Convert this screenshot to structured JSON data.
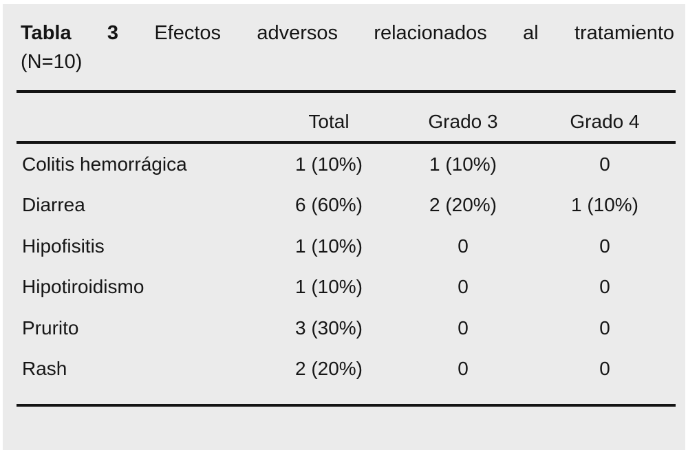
{
  "table": {
    "title_label": "Tabla 3",
    "title_text": "Efectos adversos relacionados al tratamiento",
    "title_note": "(N=10)",
    "columns": [
      "",
      "Total",
      "Grado 3",
      "Grado 4"
    ],
    "rows": [
      {
        "label": "Colitis hemorrágica",
        "total": "1 (10%)",
        "grado3": "1 (10%)",
        "grado4": "0"
      },
      {
        "label": "Diarrea",
        "total": "6 (60%)",
        "grado3": "2 (20%)",
        "grado4": "1 (10%)"
      },
      {
        "label": "Hipofisitis",
        "total": "1 (10%)",
        "grado3": "0",
        "grado4": "0"
      },
      {
        "label": "Hipotiroidismo",
        "total": "1 (10%)",
        "grado3": "0",
        "grado4": "0"
      },
      {
        "label": "Prurito",
        "total": "3 (30%)",
        "grado3": "0",
        "grado4": "0"
      },
      {
        "label": "Rash",
        "total": "2 (20%)",
        "grado3": "0",
        "grado4": "0"
      }
    ]
  },
  "colors": {
    "panel_background": "#ebebeb",
    "text": "#161616",
    "rule": "#141414"
  }
}
